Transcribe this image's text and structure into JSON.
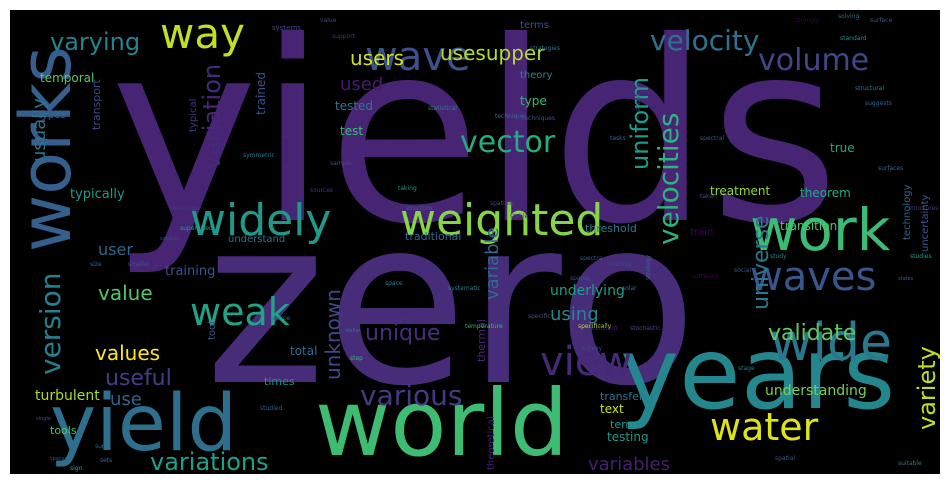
{
  "word_cloud": {
    "background": "#000000",
    "words": [
      {
        "text": "yields",
        "color": "#482475"
      },
      {
        "text": "zero",
        "color": "#472c7a"
      },
      {
        "text": "years",
        "color": "#24878e"
      },
      {
        "text": "world",
        "color": "#3fbc73"
      },
      {
        "text": "yield",
        "color": "#2e6f8e"
      },
      {
        "text": "works",
        "color": "#355f8d"
      },
      {
        "text": "work",
        "color": "#3bbb75"
      },
      {
        "text": "widely",
        "color": "#1f9a8a"
      },
      {
        "text": "weighted",
        "color": "#86d549"
      },
      {
        "text": "wide",
        "color": "#2a788e"
      },
      {
        "text": "waves",
        "color": "#39568c"
      },
      {
        "text": "wave",
        "color": "#3b528b"
      },
      {
        "text": "way",
        "color": "#c2df23"
      },
      {
        "text": "water",
        "color": "#dde318"
      },
      {
        "text": "weak",
        "color": "#20a386"
      },
      {
        "text": "view",
        "color": "#482878"
      },
      {
        "text": "volume",
        "color": "#404688"
      },
      {
        "text": "velocity",
        "color": "#2c728e"
      },
      {
        "text": "vector",
        "color": "#25ab82"
      },
      {
        "text": "velocities",
        "color": "#2db27d"
      },
      {
        "text": "version",
        "color": "#277f8e"
      },
      {
        "text": "various",
        "color": "#443a83"
      },
      {
        "text": "variations",
        "color": "#1fa088"
      },
      {
        "text": "variation",
        "color": "#482979"
      },
      {
        "text": "varying",
        "color": "#26828e"
      },
      {
        "text": "uniform",
        "color": "#1e9c89"
      },
      {
        "text": "universe",
        "color": "#2a788e"
      },
      {
        "text": "variety",
        "color": "#bddf26"
      },
      {
        "text": "validate",
        "color": "#5ec962"
      },
      {
        "text": "unique",
        "color": "#472d7b"
      },
      {
        "text": "unknown",
        "color": "#3e4989"
      },
      {
        "text": "useful",
        "color": "#433e85"
      },
      {
        "text": "values",
        "color": "#fde725"
      },
      {
        "text": "value",
        "color": "#52c569"
      },
      {
        "text": "usesupper",
        "color": "#b5de2b"
      },
      {
        "text": "users",
        "color": "#d2e21b"
      },
      {
        "text": "used",
        "color": "#481a6c"
      },
      {
        "text": "usually",
        "color": "#2c728e"
      },
      {
        "text": "use",
        "color": "#33638d"
      },
      {
        "text": "user",
        "color": "#31688e"
      },
      {
        "text": "using",
        "color": "#25858e"
      },
      {
        "text": "variables",
        "color": "#481f70"
      },
      {
        "text": "variable",
        "color": "#31688e"
      },
      {
        "text": "understanding",
        "color": "#7ad151"
      },
      {
        "text": "turbulent",
        "color": "#a8db34"
      },
      {
        "text": "training",
        "color": "#3b528b"
      },
      {
        "text": "treatment",
        "color": "#90d743"
      },
      {
        "text": "theorem",
        "color": "#22a884"
      },
      {
        "text": "transition",
        "color": "#54c568"
      },
      {
        "text": "typically",
        "color": "#1e9b8a"
      },
      {
        "text": "underlying",
        "color": "#1f9e89"
      },
      {
        "text": "tested",
        "color": "#2a788e"
      },
      {
        "text": "test",
        "color": "#3dbc74"
      },
      {
        "text": "trained",
        "color": "#3b528b"
      },
      {
        "text": "traditional",
        "color": "#31678e"
      },
      {
        "text": "threshold",
        "color": "#2a788e"
      },
      {
        "text": "understand",
        "color": "#2e6e8e"
      },
      {
        "text": "type",
        "color": "#35b779"
      },
      {
        "text": "theory",
        "color": "#26828e"
      },
      {
        "text": "true",
        "color": "#22a785"
      },
      {
        "text": "uncertainty",
        "color": "#39558c"
      },
      {
        "text": "total",
        "color": "#2f6b8e"
      },
      {
        "text": "tools",
        "color": "#52c569"
      },
      {
        "text": "tool",
        "color": "#38588c"
      },
      {
        "text": "times",
        "color": "#20928c"
      },
      {
        "text": "text",
        "color": "#cae11f"
      },
      {
        "text": "testing",
        "color": "#1f988b"
      },
      {
        "text": "term",
        "color": "#1f9a8a"
      },
      {
        "text": "transfer",
        "color": "#2c728e"
      },
      {
        "text": "thermal",
        "color": "#482576"
      },
      {
        "text": "temporal",
        "color": "#5ec962"
      },
      {
        "text": "types",
        "color": "#32648e"
      },
      {
        "text": "transport",
        "color": "#414487"
      },
      {
        "text": "typical",
        "color": "#453781"
      },
      {
        "text": "terms",
        "color": "#3b528b"
      },
      {
        "text": "theoretical",
        "color": "#482173"
      },
      {
        "text": "train",
        "color": "#440154"
      },
      {
        "text": "technology",
        "color": "#33638d"
      },
      {
        "text": "systems",
        "color": "#404688"
      },
      {
        "text": "value",
        "color": "#3e4a89"
      },
      {
        "text": "support",
        "color": "#46327e"
      },
      {
        "text": "strategies",
        "color": "#2a788e"
      },
      {
        "text": "strongly",
        "color": "#440154"
      },
      {
        "text": "solving",
        "color": "#2f6b8e"
      },
      {
        "text": "surface",
        "color": "#39568c"
      },
      {
        "text": "standard",
        "color": "#1f948c"
      },
      {
        "text": "structural",
        "color": "#287d8e"
      },
      {
        "text": "suggests",
        "color": "#33638d"
      },
      {
        "text": "stable",
        "color": "#46307e"
      },
      {
        "text": "spectral",
        "color": "#3b528b"
      },
      {
        "text": "surfaces",
        "color": "#31688e"
      },
      {
        "text": "structures",
        "color": "#443983"
      },
      {
        "text": "technique",
        "color": "#2d718e"
      },
      {
        "text": "techniques",
        "color": "#3b528b"
      },
      {
        "text": "taking",
        "color": "#1f968b"
      },
      {
        "text": "symmetric",
        "color": "#2a788e"
      },
      {
        "text": "statistical",
        "color": "#26818e"
      },
      {
        "text": "structure",
        "color": "#34608d"
      },
      {
        "text": "supervised",
        "color": "#20a386"
      },
      {
        "text": "spectra",
        "color": "#38588c"
      },
      {
        "text": "strategy",
        "color": "#31668e"
      },
      {
        "text": "sparse",
        "color": "#3b518b"
      },
      {
        "text": "space",
        "color": "#26828e"
      },
      {
        "text": "temperature",
        "color": "#35b779"
      },
      {
        "text": "target",
        "color": "#46327e"
      },
      {
        "text": "solution",
        "color": "#3e4989"
      },
      {
        "text": "size",
        "color": "#31688e"
      },
      {
        "text": "smaller",
        "color": "#3a548c"
      },
      {
        "text": "spatially",
        "color": "#404688"
      },
      {
        "text": "study",
        "color": "#26828e"
      },
      {
        "text": "studies",
        "color": "#1f9e89"
      },
      {
        "text": "states",
        "color": "#33638d"
      },
      {
        "text": "software",
        "color": "#440154"
      },
      {
        "text": "social",
        "color": "#39558c"
      },
      {
        "text": "stability",
        "color": "#3e4a89"
      },
      {
        "text": "solar",
        "color": "#2d708e"
      },
      {
        "text": "specific",
        "color": "#38588c"
      },
      {
        "text": "specifically",
        "color": "#b5de2b"
      },
      {
        "text": "sufficient",
        "color": "#482475"
      },
      {
        "text": "stage",
        "color": "#2a788e"
      },
      {
        "text": "survey",
        "color": "#3e4989"
      },
      {
        "text": "source",
        "color": "#2c718e"
      },
      {
        "text": "step",
        "color": "#35b779"
      },
      {
        "text": "stochastic",
        "color": "#404688"
      },
      {
        "text": "stellar",
        "color": "#2a788e"
      },
      {
        "text": "sum",
        "color": "#31688e"
      },
      {
        "text": "sets",
        "color": "#2e6e8e"
      },
      {
        "text": "spaces",
        "color": "#3b528b"
      },
      {
        "text": "sign",
        "color": "#25ab82"
      },
      {
        "text": "simple",
        "color": "#2a788e"
      },
      {
        "text": "single",
        "color": "#3e4989"
      },
      {
        "text": "studied",
        "color": "#33638d"
      },
      {
        "text": "status",
        "color": "#3e4a89"
      },
      {
        "text": "systematic",
        "color": "#26818e"
      },
      {
        "text": "spatial",
        "color": "#39558c"
      },
      {
        "text": "suitable",
        "color": "#2a788e"
      },
      {
        "text": "small",
        "color": "#3b528b"
      },
      {
        "text": "sources",
        "color": "#46327e"
      },
      {
        "text": "taken",
        "color": "#3e4989"
      },
      {
        "text": "suggest",
        "color": "#481a6c"
      },
      {
        "text": "sample",
        "color": "#3b528b"
      },
      {
        "text": "telescope",
        "color": "#443a83"
      },
      {
        "text": "tasks",
        "color": "#33638d"
      },
      {
        "text": "task",
        "color": "#2c718e"
      },
      {
        "text": "sub",
        "color": "#2a788e"
      }
    ]
  }
}
